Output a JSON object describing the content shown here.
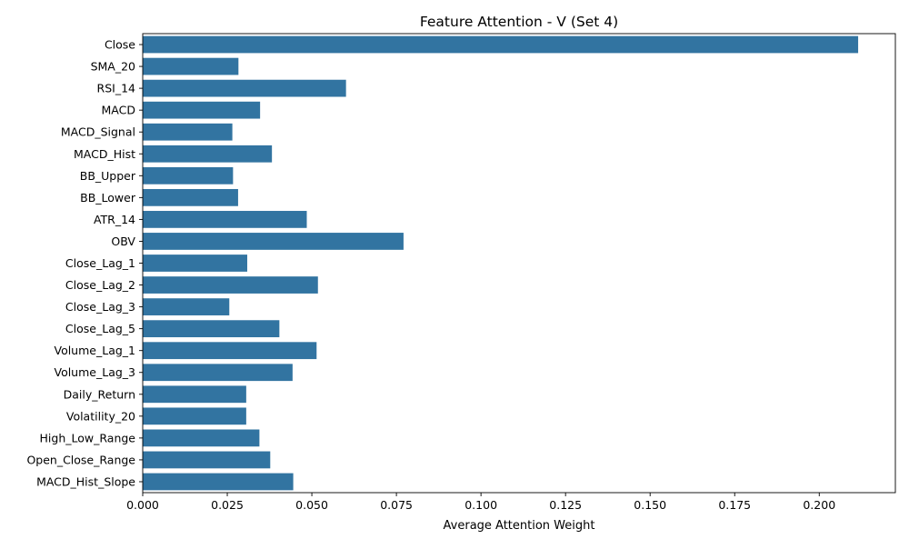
{
  "chart_data": {
    "type": "bar",
    "orientation": "horizontal",
    "title": "Feature Attention - V (Set 4)",
    "xlabel": "Average Attention Weight",
    "ylabel": "",
    "xlim": [
      0,
      0.2225
    ],
    "x_ticks": [
      "0.000",
      "0.025",
      "0.050",
      "0.075",
      "0.100",
      "0.125",
      "0.150",
      "0.175",
      "0.200"
    ],
    "grid": false,
    "bar_color": "#3274a1",
    "categories": [
      "Close",
      "SMA_20",
      "RSI_14",
      "MACD",
      "MACD_Signal",
      "MACD_Hist",
      "BB_Upper",
      "BB_Lower",
      "ATR_14",
      "OBV",
      "Close_Lag_1",
      "Close_Lag_2",
      "Close_Lag_3",
      "Close_Lag_5",
      "Volume_Lag_1",
      "Volume_Lag_3",
      "Daily_Return",
      "Volatility_20",
      "High_Low_Range",
      "Open_Close_Range",
      "MACD_Hist_Slope"
    ],
    "values": [
      0.2115,
      0.0283,
      0.0601,
      0.0347,
      0.0265,
      0.0382,
      0.0267,
      0.0282,
      0.0485,
      0.0771,
      0.0309,
      0.0518,
      0.0256,
      0.0404,
      0.0514,
      0.0443,
      0.0306,
      0.0306,
      0.0345,
      0.0377,
      0.0445
    ]
  }
}
